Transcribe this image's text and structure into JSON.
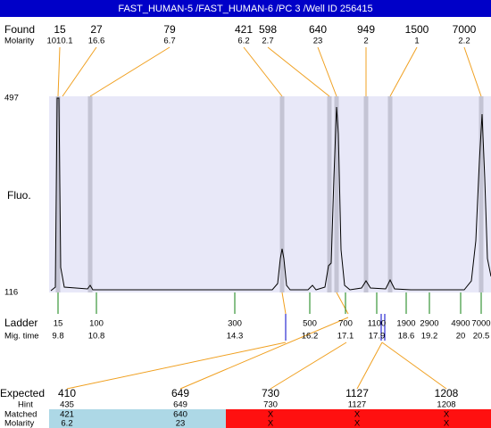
{
  "header": {
    "title": "FAST_HUMAN-5 /FAST_HUMAN-6 /PC 3 /Well ID 256415"
  },
  "found": {
    "label": "Found",
    "sublabel": "Molarity",
    "sizes": [
      15,
      27,
      79,
      421,
      598,
      640,
      949,
      1500,
      7000
    ],
    "molarity": [
      1010.1,
      16.6,
      6.7,
      6.2,
      2.7,
      23,
      2,
      1,
      2.2
    ]
  },
  "axis": {
    "top": "497",
    "bottom": "116",
    "label": "Fluo."
  },
  "ladder": {
    "label": "Ladder",
    "sublabel": "Mig. time",
    "sizes": [
      15,
      100,
      300,
      500,
      700,
      1100,
      1900,
      2900,
      4900,
      7000
    ],
    "times": [
      9.8,
      10.8,
      14.3,
      16.2,
      17.1,
      17.9,
      18.6,
      19.2,
      20,
      20.5
    ]
  },
  "expected": {
    "label": "Expected",
    "hint_label": "Hint",
    "matched_label": "Matched",
    "molarity_label": "Molarity",
    "values": [
      410,
      649,
      730,
      1127,
      1208
    ],
    "hints": [
      435,
      649,
      730,
      1127,
      1208
    ],
    "matched": [
      421,
      640,
      "X",
      "X",
      "X"
    ],
    "molarity": [
      6.2,
      23,
      "X",
      "X",
      "X"
    ]
  }
}
